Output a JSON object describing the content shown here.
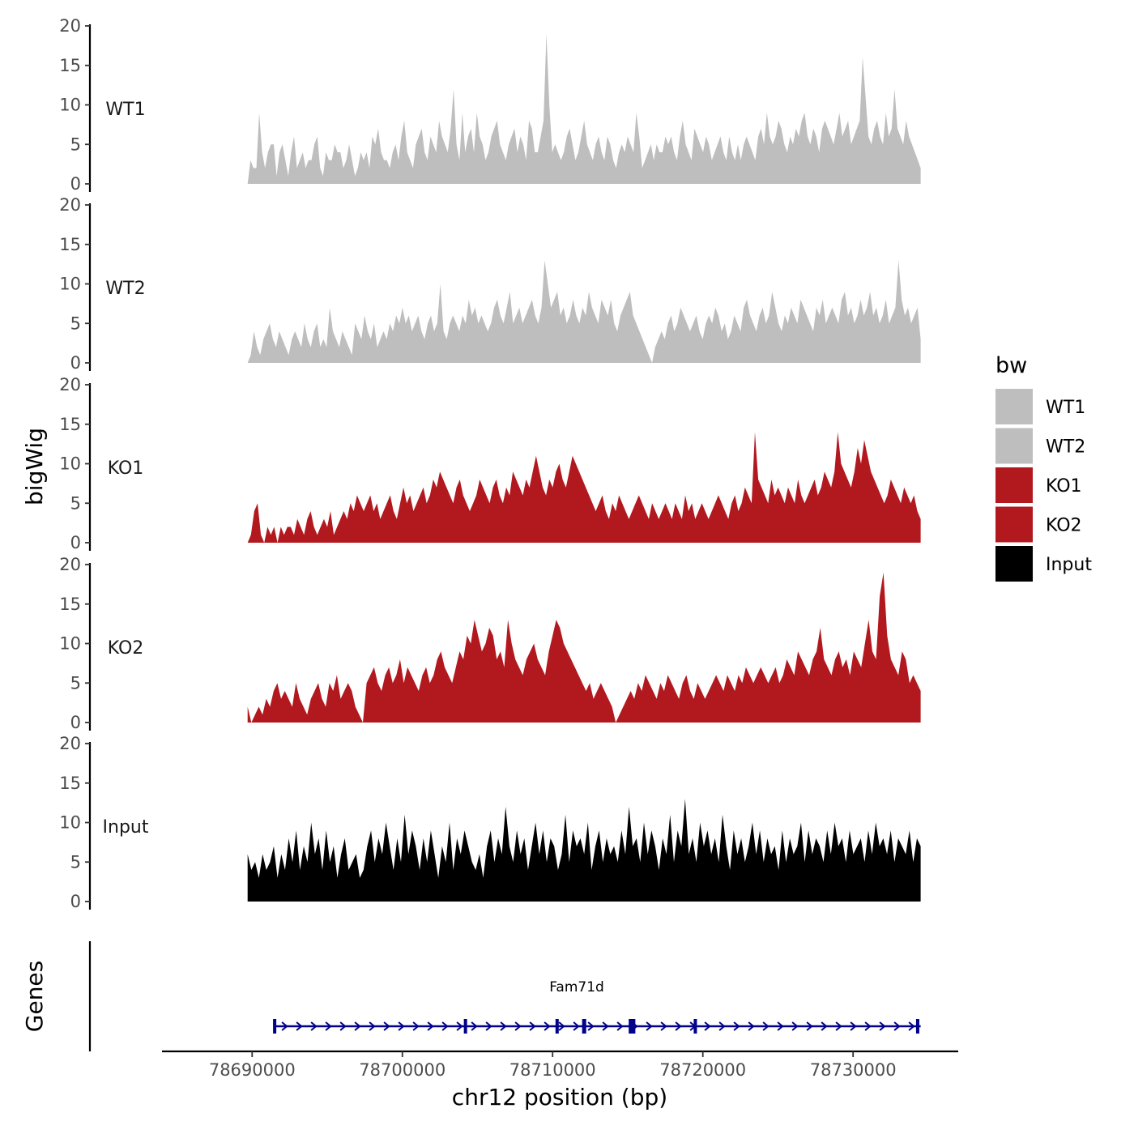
{
  "chart_data": {
    "type": "area",
    "panel_count": 5,
    "ylabel": "bigWig",
    "xlabel": "chr12 position (bp)",
    "xlim": [
      78684000,
      78737000
    ],
    "data_xrange": [
      78689700,
      78734500
    ],
    "ylim": [
      0,
      20
    ],
    "yticks": [
      0,
      5,
      10,
      15,
      20
    ],
    "xticks": [
      78690000,
      78700000,
      78710000,
      78720000,
      78730000
    ],
    "x_tick_labels": [
      "78690000",
      "78700000",
      "78710000",
      "78720000",
      "78730000"
    ],
    "legend": {
      "title": "bw",
      "position": "right"
    },
    "series": [
      {
        "name": "WT1",
        "color": "#bebebe",
        "values": [
          0,
          3,
          2,
          2,
          9,
          4,
          2,
          4,
          5,
          5,
          1,
          4,
          5,
          3,
          1,
          4,
          6,
          2,
          3,
          4,
          2,
          3,
          3,
          5,
          6,
          2,
          1,
          4,
          3,
          3,
          5,
          4,
          4,
          2,
          3,
          5,
          3,
          1,
          2,
          4,
          3,
          4,
          2,
          6,
          5,
          7,
          4,
          3,
          3,
          2,
          4,
          5,
          3,
          6,
          8,
          4,
          3,
          2,
          5,
          6,
          7,
          4,
          3,
          6,
          5,
          4,
          8,
          6,
          5,
          4,
          7,
          12,
          5,
          3,
          9,
          4,
          6,
          7,
          4,
          9,
          6,
          5,
          3,
          4,
          6,
          7,
          8,
          5,
          4,
          3,
          5,
          6,
          7,
          4,
          6,
          5,
          3,
          8,
          7,
          4,
          4,
          6,
          8,
          19,
          10,
          4,
          5,
          4,
          3,
          4,
          6,
          7,
          5,
          3,
          4,
          6,
          8,
          5,
          4,
          3,
          5,
          6,
          4,
          3,
          6,
          5,
          3,
          2,
          4,
          5,
          4,
          6,
          5,
          4,
          9,
          6,
          2,
          3,
          4,
          5,
          3,
          5,
          4,
          4,
          6,
          5,
          6,
          4,
          3,
          6,
          8,
          5,
          4,
          3,
          7,
          6,
          5,
          4,
          6,
          5,
          3,
          4,
          5,
          6,
          4,
          3,
          6,
          4,
          3,
          5,
          3,
          5,
          6,
          5,
          4,
          3,
          6,
          7,
          5,
          9,
          6,
          5,
          6,
          8,
          7,
          5,
          4,
          6,
          5,
          7,
          6,
          8,
          9,
          6,
          5,
          7,
          6,
          4,
          7,
          8,
          7,
          6,
          5,
          7,
          9,
          6,
          7,
          8,
          5,
          6,
          7,
          8,
          16,
          11,
          6,
          5,
          7,
          8,
          6,
          5,
          9,
          6,
          7,
          12,
          7,
          6,
          5,
          8,
          6,
          5,
          4,
          3,
          2
        ]
      },
      {
        "name": "WT2",
        "color": "#bebebe",
        "values": [
          0,
          1,
          4,
          2,
          1,
          3,
          4,
          5,
          3,
          2,
          4,
          3,
          2,
          1,
          3,
          4,
          3,
          2,
          5,
          3,
          2,
          4,
          5,
          2,
          3,
          2,
          7,
          4,
          3,
          2,
          4,
          3,
          2,
          1,
          5,
          4,
          3,
          6,
          4,
          3,
          5,
          2,
          3,
          4,
          3,
          5,
          4,
          6,
          5,
          7,
          5,
          6,
          4,
          5,
          6,
          4,
          3,
          5,
          6,
          4,
          5,
          10,
          4,
          3,
          5,
          6,
          5,
          4,
          6,
          5,
          8,
          6,
          7,
          5,
          6,
          5,
          4,
          5,
          7,
          8,
          6,
          5,
          7,
          9,
          5,
          6,
          7,
          5,
          6,
          7,
          8,
          6,
          5,
          7,
          13,
          10,
          7,
          8,
          9,
          6,
          7,
          5,
          6,
          8,
          6,
          5,
          7,
          6,
          9,
          7,
          6,
          5,
          8,
          7,
          6,
          8,
          5,
          4,
          6,
          7,
          8,
          9,
          6,
          5,
          4,
          3,
          2,
          1,
          0,
          2,
          3,
          4,
          3,
          5,
          6,
          4,
          5,
          7,
          6,
          5,
          4,
          5,
          6,
          4,
          3,
          5,
          6,
          5,
          7,
          6,
          4,
          5,
          3,
          4,
          6,
          5,
          4,
          7,
          8,
          6,
          5,
          4,
          6,
          7,
          5,
          6,
          9,
          7,
          5,
          4,
          6,
          5,
          7,
          6,
          5,
          8,
          7,
          6,
          5,
          4,
          7,
          6,
          8,
          5,
          6,
          7,
          6,
          5,
          8,
          9,
          6,
          7,
          5,
          6,
          8,
          6,
          7,
          9,
          6,
          7,
          5,
          6,
          8,
          5,
          6,
          7,
          13,
          8,
          6,
          7,
          5,
          6,
          7,
          3
        ]
      },
      {
        "name": "KO1",
        "color": "#b2191f",
        "values": [
          0,
          1,
          4,
          5,
          1,
          0,
          2,
          1,
          2,
          0,
          2,
          1,
          2,
          2,
          1,
          3,
          2,
          1,
          3,
          4,
          2,
          1,
          2,
          3,
          2,
          4,
          1,
          2,
          3,
          4,
          3,
          5,
          4,
          6,
          5,
          4,
          5,
          6,
          4,
          5,
          3,
          4,
          5,
          6,
          4,
          3,
          5,
          7,
          5,
          6,
          4,
          5,
          6,
          7,
          5,
          6,
          8,
          7,
          9,
          8,
          7,
          6,
          5,
          7,
          8,
          6,
          5,
          4,
          5,
          6,
          8,
          7,
          6,
          5,
          7,
          8,
          6,
          5,
          7,
          6,
          9,
          8,
          7,
          6,
          8,
          7,
          9,
          11,
          9,
          7,
          6,
          8,
          7,
          9,
          10,
          8,
          7,
          9,
          11,
          10,
          9,
          8,
          7,
          6,
          5,
          4,
          5,
          6,
          4,
          3,
          5,
          4,
          6,
          5,
          4,
          3,
          4,
          5,
          6,
          5,
          4,
          3,
          5,
          4,
          3,
          4,
          5,
          4,
          3,
          5,
          4,
          3,
          6,
          4,
          5,
          3,
          4,
          5,
          4,
          3,
          4,
          5,
          6,
          5,
          4,
          3,
          5,
          6,
          4,
          5,
          7,
          6,
          5,
          14,
          8,
          7,
          6,
          5,
          8,
          6,
          7,
          6,
          5,
          7,
          6,
          5,
          8,
          6,
          5,
          6,
          7,
          8,
          6,
          7,
          9,
          8,
          7,
          9,
          14,
          10,
          9,
          8,
          7,
          9,
          12,
          10,
          13,
          11,
          9,
          8,
          7,
          6,
          5,
          6,
          8,
          7,
          6,
          5,
          7,
          6,
          5,
          6,
          4,
          3
        ]
      },
      {
        "name": "KO2",
        "color": "#b2191f",
        "values": [
          2,
          0,
          1,
          2,
          1,
          3,
          2,
          4,
          5,
          3,
          4,
          3,
          2,
          5,
          3,
          2,
          1,
          3,
          4,
          5,
          3,
          2,
          5,
          4,
          6,
          3,
          4,
          5,
          4,
          2,
          1,
          0,
          5,
          6,
          7,
          5,
          4,
          6,
          7,
          5,
          6,
          8,
          5,
          7,
          6,
          5,
          4,
          6,
          7,
          5,
          6,
          8,
          9,
          7,
          6,
          5,
          7,
          9,
          8,
          11,
          10,
          13,
          11,
          9,
          10,
          12,
          11,
          8,
          9,
          7,
          13,
          10,
          8,
          7,
          6,
          8,
          9,
          10,
          8,
          7,
          6,
          9,
          11,
          13,
          12,
          10,
          9,
          8,
          7,
          6,
          5,
          4,
          5,
          3,
          4,
          5,
          4,
          3,
          2,
          0,
          1,
          2,
          3,
          4,
          3,
          5,
          4,
          6,
          5,
          4,
          3,
          5,
          4,
          6,
          5,
          4,
          3,
          5,
          6,
          4,
          3,
          5,
          4,
          3,
          4,
          5,
          6,
          5,
          4,
          6,
          5,
          4,
          6,
          5,
          7,
          6,
          5,
          6,
          7,
          6,
          5,
          6,
          7,
          5,
          6,
          8,
          7,
          6,
          9,
          8,
          7,
          6,
          8,
          9,
          12,
          8,
          7,
          6,
          8,
          9,
          7,
          8,
          6,
          9,
          8,
          7,
          10,
          13,
          9,
          8,
          16,
          19,
          11,
          8,
          7,
          6,
          9,
          8,
          5,
          6,
          5,
          4
        ]
      },
      {
        "name": "Input",
        "color": "#000000",
        "values": [
          6,
          4,
          5,
          3,
          6,
          4,
          5,
          7,
          3,
          6,
          4,
          8,
          5,
          9,
          4,
          7,
          5,
          10,
          6,
          8,
          4,
          9,
          5,
          7,
          3,
          6,
          8,
          4,
          5,
          6,
          3,
          4,
          7,
          9,
          5,
          8,
          6,
          10,
          7,
          4,
          8,
          5,
          11,
          6,
          9,
          7,
          4,
          8,
          5,
          9,
          6,
          3,
          7,
          5,
          10,
          4,
          8,
          6,
          9,
          7,
          5,
          4,
          6,
          3,
          7,
          9,
          5,
          8,
          6,
          12,
          7,
          5,
          9,
          6,
          8,
          4,
          7,
          10,
          6,
          9,
          5,
          8,
          7,
          4,
          6,
          11,
          5,
          9,
          7,
          8,
          6,
          10,
          4,
          7,
          9,
          5,
          8,
          6,
          7,
          5,
          9,
          6,
          12,
          7,
          8,
          5,
          10,
          6,
          9,
          7,
          4,
          8,
          6,
          11,
          5,
          9,
          7,
          13,
          6,
          8,
          5,
          10,
          7,
          9,
          6,
          8,
          5,
          11,
          7,
          4,
          9,
          6,
          8,
          5,
          7,
          10,
          6,
          9,
          5,
          8,
          6,
          7,
          4,
          9,
          5,
          8,
          6,
          7,
          10,
          5,
          9,
          6,
          8,
          7,
          5,
          9,
          6,
          10,
          7,
          8,
          5,
          9,
          6,
          7,
          8,
          5,
          9,
          6,
          10,
          7,
          8,
          6,
          9,
          5,
          8,
          7,
          6,
          9,
          5,
          8,
          7
        ]
      }
    ],
    "gene_track": {
      "ylabel": "Genes",
      "gene_name": "Fam71d",
      "color": "#00008b",
      "start": 78691500,
      "end": 78734500,
      "strand": "+",
      "exons": [
        78691500,
        78704200,
        78710300,
        78712100,
        78715200,
        78715400,
        78719500,
        78734300
      ]
    }
  }
}
